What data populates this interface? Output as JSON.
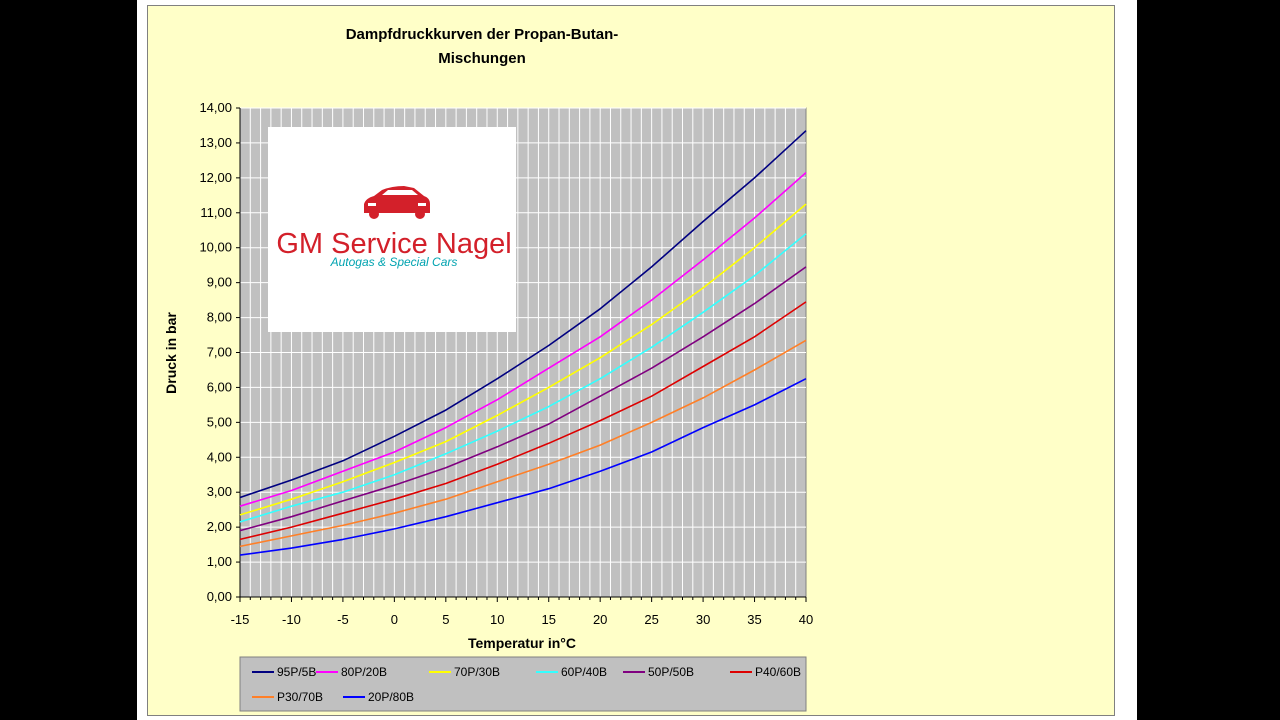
{
  "chart_data": {
    "type": "line",
    "title_lines": [
      "Dampfdruckkurven der Propan-Butan-",
      "Mischungen"
    ],
    "xlabel": "Temperatur in°C",
    "ylabel": "Druck in bar",
    "xlim": [
      -15,
      40
    ],
    "ylim": [
      0,
      14
    ],
    "x_ticks": [
      -15,
      -10,
      -5,
      0,
      5,
      10,
      15,
      20,
      25,
      30,
      35,
      40
    ],
    "x_tick_labels": [
      "-15",
      "-10",
      "-5",
      "0",
      "5",
      "10",
      "15",
      "20",
      "25",
      "30",
      "35",
      "40"
    ],
    "y_ticks": [
      0,
      1,
      2,
      3,
      4,
      5,
      6,
      7,
      8,
      9,
      10,
      11,
      12,
      13,
      14
    ],
    "y_tick_labels": [
      "0,00",
      "1,00",
      "2,00",
      "3,00",
      "4,00",
      "5,00",
      "6,00",
      "7,00",
      "8,00",
      "9,00",
      "10,00",
      "11,00",
      "12,00",
      "13,00",
      "14,00"
    ],
    "grid": true,
    "legend_position": "bottom",
    "colors": {
      "plot_background": "#c0c0c0",
      "chart_background": "#ffffc8",
      "grid": "#ffffff"
    },
    "x": [
      -15,
      -10,
      -5,
      0,
      5,
      10,
      15,
      20,
      25,
      30,
      35,
      40
    ],
    "series": [
      {
        "name": "95P/5B",
        "color": "#000080",
        "values": [
          2.85,
          3.35,
          3.9,
          4.6,
          5.35,
          6.25,
          7.2,
          8.25,
          9.45,
          10.75,
          12.0,
          13.35
        ]
      },
      {
        "name": "80P/20B",
        "color": "#ff00ff",
        "values": [
          2.6,
          3.05,
          3.6,
          4.15,
          4.85,
          5.65,
          6.55,
          7.45,
          8.5,
          9.65,
          10.85,
          12.15
        ]
      },
      {
        "name": "70P/30B",
        "color": "#ffff00",
        "values": [
          2.35,
          2.8,
          3.3,
          3.85,
          4.45,
          5.2,
          6.0,
          6.85,
          7.8,
          8.85,
          10.0,
          11.25
        ]
      },
      {
        "name": "60P/40B",
        "color": "#33ffff",
        "values": [
          2.15,
          2.6,
          3.0,
          3.5,
          4.1,
          4.75,
          5.45,
          6.25,
          7.15,
          8.15,
          9.2,
          10.4
        ]
      },
      {
        "name": "50P/50B",
        "color": "#800080",
        "values": [
          1.9,
          2.3,
          2.75,
          3.2,
          3.7,
          4.3,
          4.95,
          5.75,
          6.55,
          7.45,
          8.4,
          9.45
        ]
      },
      {
        "name": "P40/60B",
        "color": "#dd0000",
        "values": [
          1.65,
          2.0,
          2.4,
          2.8,
          3.25,
          3.8,
          4.4,
          5.05,
          5.75,
          6.6,
          7.45,
          8.45
        ]
      },
      {
        "name": "P30/70B",
        "color": "#ff7f27",
        "values": [
          1.45,
          1.75,
          2.05,
          2.4,
          2.8,
          3.3,
          3.8,
          4.35,
          5.0,
          5.7,
          6.5,
          7.35
        ]
      },
      {
        "name": "20P/80B",
        "color": "#0000ff",
        "values": [
          1.2,
          1.4,
          1.65,
          1.95,
          2.3,
          2.7,
          3.1,
          3.6,
          4.15,
          4.85,
          5.5,
          6.25
        ]
      }
    ]
  },
  "logo": {
    "name": "GM Service Nagel",
    "tagline": "Autogas & Special Cars",
    "primary_color": "#d3202a",
    "secondary_color": "#00a3b0",
    "icon": "car-icon"
  }
}
